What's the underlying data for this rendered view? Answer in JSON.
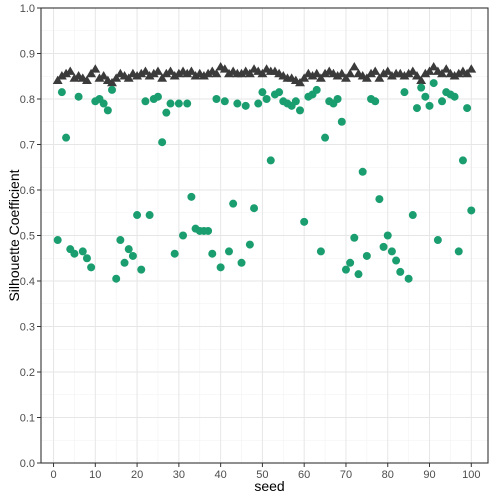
{
  "chart_data": {
    "type": "scatter",
    "title": "",
    "xlabel": "seed",
    "ylabel": "Silhouette Coefficient",
    "xlim": [
      -3,
      104
    ],
    "ylim": [
      0.0,
      1.0
    ],
    "x_ticks": [
      0,
      10,
      20,
      30,
      40,
      50,
      60,
      70,
      80,
      90,
      100
    ],
    "y_ticks": [
      0.0,
      0.1,
      0.2,
      0.3,
      0.4,
      0.5,
      0.6,
      0.7,
      0.8,
      0.9,
      1.0
    ],
    "x_tick_labels": [
      "0",
      "10",
      "20",
      "30",
      "40",
      "50",
      "60",
      "70",
      "80",
      "90",
      "100"
    ],
    "y_tick_labels": [
      "0.0",
      "0.1",
      "0.2",
      "0.3",
      "0.4",
      "0.5",
      "0.6",
      "0.7",
      "0.8",
      "0.9",
      "1.0"
    ],
    "grid": true,
    "legend": "none",
    "series": [
      {
        "marker": "triangle",
        "color": "#3b3b3b",
        "x": [
          1,
          2,
          3,
          4,
          5,
          6,
          7,
          8,
          9,
          10,
          11,
          12,
          13,
          14,
          15,
          16,
          17,
          18,
          19,
          20,
          21,
          22,
          23,
          24,
          25,
          26,
          27,
          28,
          29,
          30,
          31,
          32,
          33,
          34,
          35,
          36,
          37,
          38,
          39,
          40,
          41,
          42,
          43,
          44,
          45,
          46,
          47,
          48,
          49,
          50,
          51,
          52,
          53,
          54,
          55,
          56,
          57,
          58,
          59,
          60,
          61,
          62,
          63,
          64,
          65,
          66,
          67,
          68,
          69,
          70,
          71,
          72,
          73,
          74,
          75,
          76,
          77,
          78,
          79,
          80,
          81,
          82,
          83,
          84,
          85,
          86,
          87,
          88,
          89,
          90,
          91,
          92,
          93,
          94,
          95,
          96,
          97,
          98,
          99,
          100
        ],
        "y": [
          0.84,
          0.85,
          0.855,
          0.86,
          0.845,
          0.85,
          0.845,
          0.84,
          0.855,
          0.865,
          0.845,
          0.85,
          0.84,
          0.835,
          0.845,
          0.855,
          0.85,
          0.845,
          0.855,
          0.85,
          0.855,
          0.86,
          0.85,
          0.855,
          0.86,
          0.845,
          0.855,
          0.86,
          0.85,
          0.855,
          0.86,
          0.855,
          0.86,
          0.85,
          0.855,
          0.85,
          0.855,
          0.86,
          0.855,
          0.87,
          0.865,
          0.855,
          0.86,
          0.855,
          0.855,
          0.86,
          0.855,
          0.865,
          0.86,
          0.855,
          0.865,
          0.86,
          0.86,
          0.855,
          0.85,
          0.845,
          0.845,
          0.84,
          0.835,
          0.845,
          0.855,
          0.85,
          0.855,
          0.845,
          0.855,
          0.86,
          0.855,
          0.85,
          0.855,
          0.845,
          0.855,
          0.87,
          0.855,
          0.85,
          0.845,
          0.855,
          0.86,
          0.845,
          0.855,
          0.86,
          0.85,
          0.855,
          0.855,
          0.85,
          0.855,
          0.86,
          0.85,
          0.84,
          0.855,
          0.86,
          0.87,
          0.86,
          0.855,
          0.865,
          0.855,
          0.85,
          0.855,
          0.86,
          0.855,
          0.865
        ]
      },
      {
        "marker": "circle",
        "color": "#1b9e6f",
        "x": [
          1,
          2,
          3,
          4,
          5,
          6,
          7,
          8,
          9,
          10,
          11,
          12,
          13,
          14,
          15,
          16,
          17,
          18,
          19,
          20,
          21,
          22,
          23,
          24,
          25,
          26,
          27,
          28,
          29,
          30,
          31,
          32,
          33,
          34,
          35,
          36,
          37,
          38,
          39,
          40,
          41,
          42,
          43,
          44,
          45,
          46,
          47,
          48,
          49,
          50,
          51,
          52,
          53,
          54,
          55,
          56,
          57,
          58,
          59,
          60,
          61,
          62,
          63,
          64,
          65,
          66,
          67,
          68,
          69,
          70,
          71,
          72,
          73,
          74,
          75,
          76,
          77,
          78,
          79,
          80,
          81,
          82,
          83,
          84,
          85,
          86,
          87,
          88,
          89,
          90,
          91,
          92,
          93,
          94,
          95,
          96,
          97,
          98,
          99,
          100
        ],
        "y": [
          0.49,
          0.815,
          0.715,
          0.47,
          0.46,
          0.805,
          0.465,
          0.45,
          0.43,
          0.795,
          0.8,
          0.79,
          0.775,
          0.82,
          0.405,
          0.49,
          0.44,
          0.47,
          0.455,
          0.545,
          0.425,
          0.795,
          0.545,
          0.8,
          0.805,
          0.705,
          0.77,
          0.79,
          0.46,
          0.79,
          0.5,
          0.79,
          0.585,
          0.515,
          0.51,
          0.51,
          0.51,
          0.46,
          0.8,
          0.43,
          0.795,
          0.465,
          0.57,
          0.79,
          0.44,
          0.785,
          0.48,
          0.56,
          0.79,
          0.815,
          0.8,
          0.665,
          0.81,
          0.815,
          0.795,
          0.79,
          0.785,
          0.795,
          0.775,
          0.53,
          0.805,
          0.81,
          0.82,
          0.465,
          0.715,
          0.795,
          0.79,
          0.8,
          0.75,
          0.425,
          0.44,
          0.495,
          0.415,
          0.64,
          0.455,
          0.8,
          0.795,
          0.58,
          0.475,
          0.5,
          0.465,
          0.445,
          0.42,
          0.815,
          0.405,
          0.545,
          0.78,
          0.825,
          0.805,
          0.785,
          0.835,
          0.49,
          0.795,
          0.815,
          0.81,
          0.805,
          0.465,
          0.665,
          0.78,
          0.555
        ]
      }
    ]
  }
}
